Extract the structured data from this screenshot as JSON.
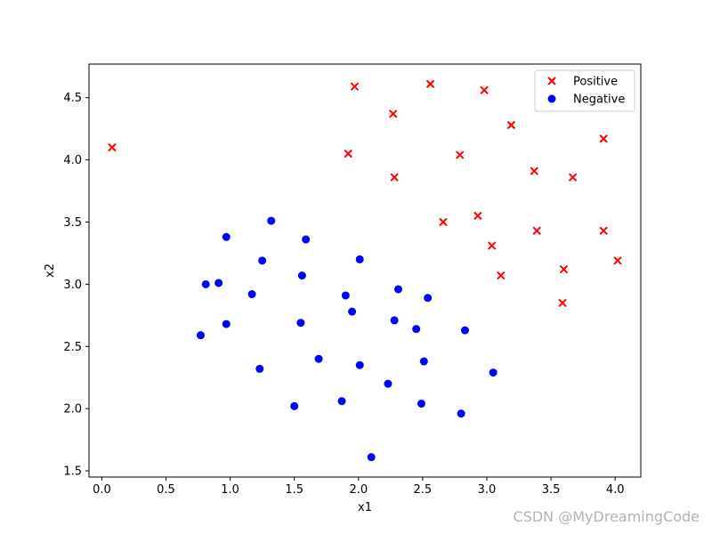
{
  "chart_data": {
    "type": "scatter",
    "title": "",
    "xlabel": "x1",
    "ylabel": "x2",
    "xlim": [
      -0.1,
      4.2
    ],
    "ylim": [
      1.45,
      4.77
    ],
    "xticks": [
      0.0,
      0.5,
      1.0,
      1.5,
      2.0,
      2.5,
      3.0,
      3.5,
      4.0
    ],
    "xtick_labels": [
      "0.0",
      "0.5",
      "1.0",
      "1.5",
      "2.0",
      "2.5",
      "3.0",
      "3.5",
      "4.0"
    ],
    "yticks": [
      1.5,
      2.0,
      2.5,
      3.0,
      3.5,
      4.0,
      4.5
    ],
    "ytick_labels": [
      "1.5",
      "2.0",
      "2.5",
      "3.0",
      "3.5",
      "4.0",
      "4.5"
    ],
    "grid": false,
    "legend_position": "top-right",
    "series": [
      {
        "name": "Positive",
        "marker": "x",
        "color": "#ff0000",
        "points": [
          [
            0.08,
            4.1
          ],
          [
            1.97,
            4.59
          ],
          [
            2.56,
            4.61
          ],
          [
            2.98,
            4.56
          ],
          [
            2.27,
            4.37
          ],
          [
            3.19,
            4.28
          ],
          [
            3.91,
            4.17
          ],
          [
            1.92,
            4.05
          ],
          [
            2.79,
            4.04
          ],
          [
            3.37,
            3.91
          ],
          [
            2.28,
            3.86
          ],
          [
            3.67,
            3.86
          ],
          [
            2.93,
            3.55
          ],
          [
            2.66,
            3.5
          ],
          [
            3.39,
            3.43
          ],
          [
            3.91,
            3.43
          ],
          [
            3.04,
            3.31
          ],
          [
            4.02,
            3.19
          ],
          [
            3.6,
            3.12
          ],
          [
            3.11,
            3.07
          ],
          [
            3.59,
            2.85
          ]
        ]
      },
      {
        "name": "Negative",
        "marker": "o",
        "color": "#0000ff",
        "points": [
          [
            1.32,
            3.51
          ],
          [
            0.97,
            3.38
          ],
          [
            1.59,
            3.36
          ],
          [
            1.25,
            3.19
          ],
          [
            2.01,
            3.2
          ],
          [
            1.56,
            3.07
          ],
          [
            0.81,
            3.0
          ],
          [
            0.91,
            3.01
          ],
          [
            2.31,
            2.96
          ],
          [
            1.17,
            2.92
          ],
          [
            1.9,
            2.91
          ],
          [
            2.54,
            2.89
          ],
          [
            1.95,
            2.78
          ],
          [
            2.28,
            2.71
          ],
          [
            1.55,
            2.69
          ],
          [
            0.97,
            2.68
          ],
          [
            2.45,
            2.64
          ],
          [
            2.83,
            2.63
          ],
          [
            0.77,
            2.59
          ],
          [
            1.69,
            2.4
          ],
          [
            2.51,
            2.38
          ],
          [
            2.01,
            2.35
          ],
          [
            1.23,
            2.32
          ],
          [
            3.05,
            2.29
          ],
          [
            2.23,
            2.2
          ],
          [
            1.87,
            2.06
          ],
          [
            2.49,
            2.04
          ],
          [
            1.5,
            2.02
          ],
          [
            2.8,
            1.96
          ],
          [
            2.1,
            1.61
          ]
        ]
      }
    ]
  },
  "watermark": "CSDN @MyDreamingCode"
}
